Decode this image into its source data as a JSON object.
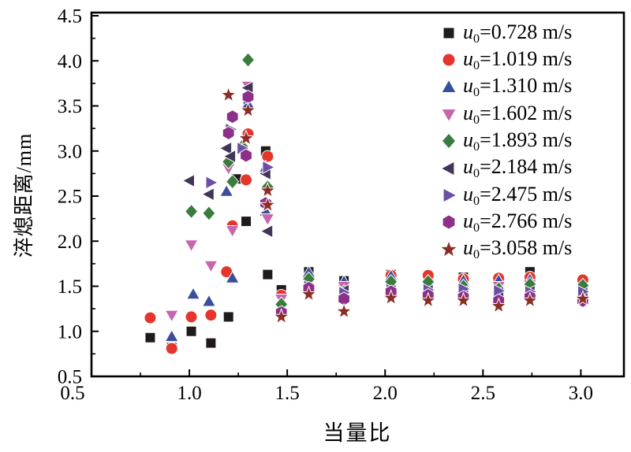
{
  "figure": {
    "background_color": "#ffffff",
    "axis_color": "#000000",
    "text_color": "#000000"
  },
  "chart_data": {
    "type": "scatter",
    "title": "",
    "xlabel": "当量比",
    "ylabel": "淬熄距离/mm",
    "xlim": [
      0.5,
      3.22
    ],
    "ylim": [
      0.5,
      4.535
    ],
    "grid": false,
    "legend_position": "top-right-inside",
    "x_tick_labels": [
      "0.5",
      "1.0",
      "1.5",
      "2.0",
      "2.5",
      "3.0"
    ],
    "x_major_ticks": [
      0.5,
      1.0,
      1.5,
      2.0,
      2.5,
      3.0
    ],
    "x_minor_ticks": [
      0.75,
      1.25,
      1.75,
      2.25,
      2.75
    ],
    "x_first_label_offset": -24,
    "y_tick_labels": [
      "0.5",
      "1.0",
      "1.5",
      "2.0",
      "2.5",
      "3.0",
      "3.5",
      "4.0",
      "4.5"
    ],
    "y_major_ticks": [
      0.5,
      1.0,
      1.5,
      2.0,
      2.5,
      3.0,
      3.5,
      4.0,
      4.5
    ],
    "y_minor_ticks": [
      0.75,
      1.25,
      1.75,
      2.25,
      2.75,
      3.25,
      3.75,
      4.25
    ],
    "series": [
      {
        "name": "u0=0.728 m/s",
        "legend_var": "u",
        "legend_sub": "0",
        "legend_rest": "=0.728 m/s",
        "marker": "square",
        "color": "#1f1b1a",
        "points": [
          [
            0.8,
            0.93
          ],
          [
            0.91,
            0.82
          ],
          [
            1.01,
            1.0
          ],
          [
            1.11,
            0.87
          ],
          [
            1.2,
            1.16
          ],
          [
            1.24,
            2.69
          ],
          [
            1.29,
            2.22
          ],
          [
            1.39,
            3.0
          ],
          [
            1.4,
            1.63
          ],
          [
            1.47,
            1.46
          ],
          [
            1.61,
            1.66
          ],
          [
            1.79,
            1.56
          ],
          [
            2.03,
            1.63
          ],
          [
            2.4,
            1.6
          ],
          [
            2.74,
            1.66
          ]
        ]
      },
      {
        "name": "u0=1.019 m/s",
        "legend_var": "u",
        "legend_sub": "0",
        "legend_rest": "=1.019 m/s",
        "marker": "circle",
        "color": "#e5362d",
        "points": [
          [
            0.8,
            1.15
          ],
          [
            0.91,
            0.81
          ],
          [
            1.01,
            1.16
          ],
          [
            1.11,
            1.18
          ],
          [
            1.19,
            1.66
          ],
          [
            1.22,
            2.17
          ],
          [
            1.29,
            2.68
          ],
          [
            1.3,
            3.19
          ],
          [
            1.4,
            2.94
          ],
          [
            1.47,
            1.4
          ],
          [
            2.03,
            1.62
          ],
          [
            2.22,
            1.62
          ],
          [
            2.4,
            1.58
          ],
          [
            2.58,
            1.59
          ],
          [
            2.74,
            1.6
          ],
          [
            3.01,
            1.57
          ]
        ]
      },
      {
        "name": "u0=1.310 m/s",
        "legend_var": "u",
        "legend_sub": "0",
        "legend_rest": "=1.310 m/s",
        "marker": "triangle-up",
        "color": "#3b4e9b",
        "points": [
          [
            0.91,
            0.94
          ],
          [
            1.02,
            1.41
          ],
          [
            1.1,
            1.33
          ],
          [
            1.19,
            2.55
          ],
          [
            1.22,
            1.59
          ],
          [
            1.3,
            3.52
          ],
          [
            1.39,
            2.82
          ],
          [
            1.39,
            2.33
          ],
          [
            1.47,
            1.24
          ],
          [
            1.61,
            1.65
          ],
          [
            1.79,
            1.55
          ],
          [
            2.03,
            1.61
          ],
          [
            2.22,
            1.44
          ],
          [
            2.4,
            1.56
          ],
          [
            2.58,
            1.56
          ],
          [
            2.74,
            1.57
          ],
          [
            3.01,
            1.49
          ]
        ]
      },
      {
        "name": "u0=1.602 m/s",
        "legend_var": "u",
        "legend_sub": "0",
        "legend_rest": "=1.602 m/s",
        "marker": "triangle-down",
        "color": "#c566ae",
        "points": [
          [
            0.91,
            1.18
          ],
          [
            1.01,
            1.96
          ],
          [
            1.11,
            1.73
          ],
          [
            1.2,
            2.81
          ],
          [
            1.22,
            2.12
          ],
          [
            1.3,
            3.72
          ],
          [
            1.4,
            2.25
          ],
          [
            1.47,
            1.36
          ],
          [
            1.61,
            1.53
          ],
          [
            1.79,
            1.5
          ],
          [
            2.03,
            1.47
          ],
          [
            2.22,
            1.47
          ],
          [
            2.58,
            1.5
          ],
          [
            2.74,
            1.52
          ],
          [
            3.01,
            1.45
          ]
        ]
      },
      {
        "name": "u0=1.893 m/s",
        "legend_var": "u",
        "legend_sub": "0",
        "legend_rest": "=1.893 m/s",
        "marker": "diamond",
        "color": "#397c3c",
        "points": [
          [
            1.01,
            2.33
          ],
          [
            1.1,
            2.31
          ],
          [
            1.2,
            2.88
          ],
          [
            1.22,
            2.66
          ],
          [
            1.27,
            3.05
          ],
          [
            1.3,
            4.01
          ],
          [
            1.4,
            2.6
          ],
          [
            1.47,
            1.3
          ],
          [
            1.61,
            1.58
          ],
          [
            1.79,
            1.44
          ],
          [
            2.03,
            1.55
          ],
          [
            2.22,
            1.55
          ],
          [
            2.4,
            1.5
          ],
          [
            2.58,
            1.47
          ],
          [
            2.74,
            1.52
          ],
          [
            3.01,
            1.51
          ]
        ]
      },
      {
        "name": "u0=2.184 m/s",
        "legend_var": "u",
        "legend_sub": "0",
        "legend_rest": "=2.184 m/s",
        "marker": "triangle-left",
        "color": "#413558",
        "points": [
          [
            1.0,
            2.67
          ],
          [
            1.1,
            2.52
          ],
          [
            1.19,
            3.03
          ],
          [
            1.21,
            2.94
          ],
          [
            1.3,
            3.7
          ],
          [
            1.39,
            2.75
          ],
          [
            1.4,
            2.11
          ],
          [
            1.79,
            1.45
          ],
          [
            2.03,
            1.45
          ],
          [
            2.22,
            1.45
          ],
          [
            2.4,
            1.44
          ],
          [
            2.58,
            1.43
          ],
          [
            2.74,
            1.44
          ],
          [
            3.01,
            1.42
          ]
        ]
      },
      {
        "name": "u0=2.475 m/s",
        "legend_var": "u",
        "legend_sub": "0",
        "legend_rest": "=2.475 m/s",
        "marker": "triangle-right",
        "color": "#6950a5",
        "points": [
          [
            1.11,
            2.65
          ],
          [
            1.21,
            3.24
          ],
          [
            1.27,
            3.03
          ],
          [
            1.3,
            3.58
          ],
          [
            1.4,
            2.82
          ],
          [
            1.61,
            1.5
          ],
          [
            1.79,
            1.43
          ],
          [
            2.03,
            1.46
          ],
          [
            2.22,
            1.46
          ],
          [
            2.4,
            1.47
          ],
          [
            2.58,
            1.45
          ],
          [
            2.74,
            1.44
          ],
          [
            3.01,
            1.44
          ]
        ]
      },
      {
        "name": "u0=2.766 m/s",
        "legend_var": "u",
        "legend_sub": "0",
        "legend_rest": "=2.766 m/s",
        "marker": "hexagon",
        "color": "#8c3089",
        "points": [
          [
            1.2,
            3.2
          ],
          [
            1.22,
            3.38
          ],
          [
            1.29,
            2.95
          ],
          [
            1.3,
            3.6
          ],
          [
            1.39,
            2.42
          ],
          [
            1.47,
            1.21
          ],
          [
            1.61,
            1.48
          ],
          [
            1.79,
            1.36
          ],
          [
            2.03,
            1.44
          ],
          [
            2.22,
            1.4
          ],
          [
            2.4,
            1.38
          ],
          [
            2.58,
            1.34
          ],
          [
            2.74,
            1.38
          ],
          [
            3.01,
            1.34
          ]
        ]
      },
      {
        "name": "u0=3.058 m/s",
        "legend_var": "u",
        "legend_sub": "0",
        "legend_rest": "=3.058 m/s",
        "marker": "star",
        "color": "#8c2d25",
        "points": [
          [
            1.2,
            3.62
          ],
          [
            1.29,
            3.14
          ],
          [
            1.3,
            3.45
          ],
          [
            1.4,
            2.56
          ],
          [
            1.4,
            2.4
          ],
          [
            1.47,
            1.16
          ],
          [
            1.61,
            1.41
          ],
          [
            1.79,
            1.22
          ],
          [
            2.03,
            1.37
          ],
          [
            2.22,
            1.34
          ],
          [
            2.4,
            1.34
          ],
          [
            2.58,
            1.28
          ],
          [
            2.74,
            1.34
          ],
          [
            3.01,
            1.36
          ]
        ]
      }
    ]
  }
}
